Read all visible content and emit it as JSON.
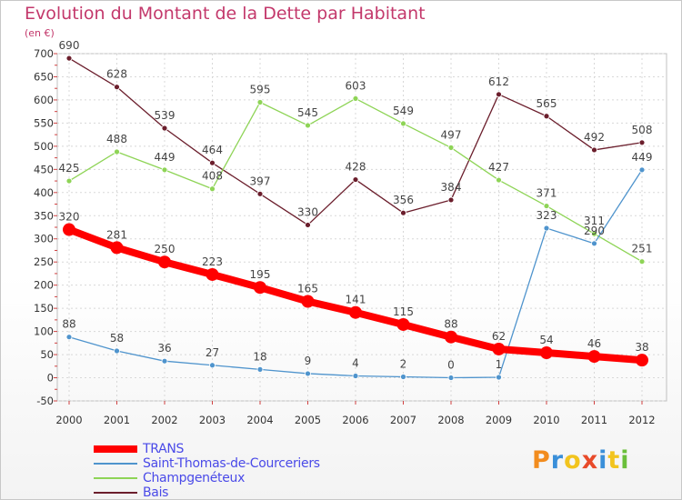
{
  "header": {
    "title": "Evolution du Montant de la Dette par Habitant",
    "unit": "(en €)"
  },
  "logo": {
    "text": "Proxiti",
    "letter_colors": [
      "#f28c1e",
      "#3a8fd9",
      "#f2c41e",
      "#e84a2a",
      "#3a8fd9",
      "#f2c41e",
      "#6abf3a"
    ]
  },
  "chart_data": {
    "type": "line",
    "title": "Evolution du Montant de la Dette par Habitant",
    "subtitle": "(en €)",
    "xlabel": "",
    "ylabel": "",
    "x": [
      "2000",
      "2001",
      "2002",
      "2003",
      "2004",
      "2005",
      "2006",
      "2007",
      "2008",
      "2009",
      "2010",
      "2011",
      "2012"
    ],
    "ylim": [
      -50,
      700
    ],
    "yticks": [
      -50,
      0,
      50,
      100,
      150,
      200,
      250,
      300,
      350,
      400,
      450,
      500,
      550,
      600,
      650,
      700
    ],
    "grid": true,
    "legend_position": "bottom-left",
    "series": [
      {
        "name": "Bais",
        "color": "#6b1e2c",
        "values": [
          690,
          628,
          539,
          464,
          397,
          330,
          428,
          356,
          384,
          612,
          565,
          492,
          508
        ]
      },
      {
        "name": "Champgenéteux",
        "color": "#8ed456",
        "values": [
          425,
          488,
          449,
          408,
          595,
          545,
          603,
          549,
          497,
          427,
          371,
          311,
          251
        ]
      },
      {
        "name": "Saint-Thomas-de-Courceriers",
        "color": "#4f94cd",
        "values": [
          88,
          58,
          36,
          27,
          18,
          9,
          4,
          2,
          0,
          1,
          323,
          290,
          449
        ]
      },
      {
        "name": "TRANS",
        "color": "#ff0000",
        "values": [
          320,
          281,
          250,
          223,
          195,
          165,
          141,
          115,
          88,
          62,
          54,
          46,
          38
        ]
      }
    ],
    "legend_order": [
      "TRANS",
      "Saint-Thomas-de-Courceriers",
      "Champgenéteux",
      "Bais"
    ]
  }
}
